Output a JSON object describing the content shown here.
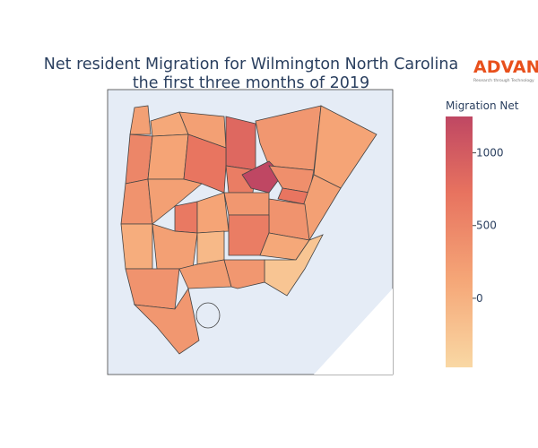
{
  "chart_data": {
    "type": "choropleth",
    "title_lines": [
      "Net resident Migration for Wilmington North Carolina",
      "the first three months of 2019"
    ],
    "colorbar": {
      "title": "Migration Net",
      "range": [
        -475,
        1250
      ],
      "ticks": [
        0,
        500,
        1000
      ]
    },
    "values": [
      200,
      100,
      200,
      850,
      300,
      150,
      500,
      150,
      700,
      600,
      1250,
      400,
      700,
      200,
      350,
      200,
      650,
      150,
      300,
      350,
      50,
      200,
      -100,
      600,
      100,
      -250,
      350,
      250,
      300,
      300
    ]
  },
  "logo": {
    "brand": "ADVAN",
    "tagline": "Research through Technology"
  }
}
